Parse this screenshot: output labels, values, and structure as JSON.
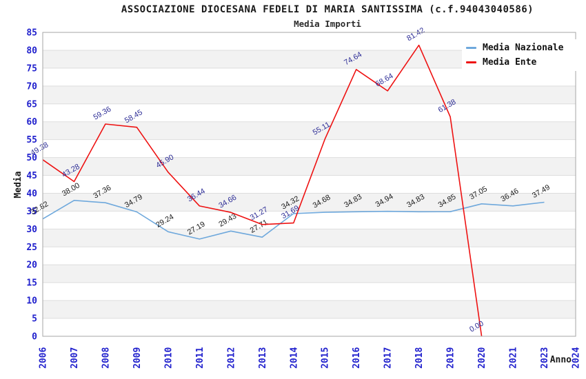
{
  "header": {
    "title": "ASSOCIAZIONE DIOCESANA FEDELI DI MARIA SANTISSIMA (c.f.94043040586)",
    "subtitle": "Media Importi"
  },
  "chart_data": {
    "type": "line",
    "x": [
      "2006",
      "2007",
      "2008",
      "2009",
      "2010",
      "2011",
      "2012",
      "2013",
      "2014",
      "2015",
      "2016",
      "2017",
      "2018",
      "2019",
      "2020",
      "2021",
      "2023",
      "2024"
    ],
    "series": [
      {
        "name": "Media Nazionale",
        "color": "#6ea8dc",
        "label_color": "#1a1a1a",
        "values": [
          32.82,
          38.0,
          37.36,
          34.79,
          29.24,
          27.19,
          29.43,
          27.71,
          34.32,
          34.68,
          34.83,
          34.94,
          34.83,
          34.85,
          37.05,
          36.46,
          37.49,
          null
        ]
      },
      {
        "name": "Media Ente",
        "color": "#ee1111",
        "label_color": "#2d2d96",
        "values": [
          49.38,
          43.28,
          59.36,
          58.45,
          45.9,
          36.44,
          34.66,
          31.27,
          31.69,
          55.11,
          74.64,
          68.64,
          81.42,
          61.38,
          0.0,
          null,
          null,
          null
        ]
      }
    ],
    "xlabel": "Anno",
    "ylabel": "Media",
    "ylim": [
      0,
      85
    ],
    "ytick_step": 5,
    "legend_position": "top-right",
    "grid": "horizontal-bands"
  },
  "colors": {
    "tick_label_blue": "#2121cd",
    "band_gray": "#f2f2f2",
    "gridline": "#dddddd",
    "plot_border": "#a6a6a6",
    "background": "#ffffff"
  }
}
